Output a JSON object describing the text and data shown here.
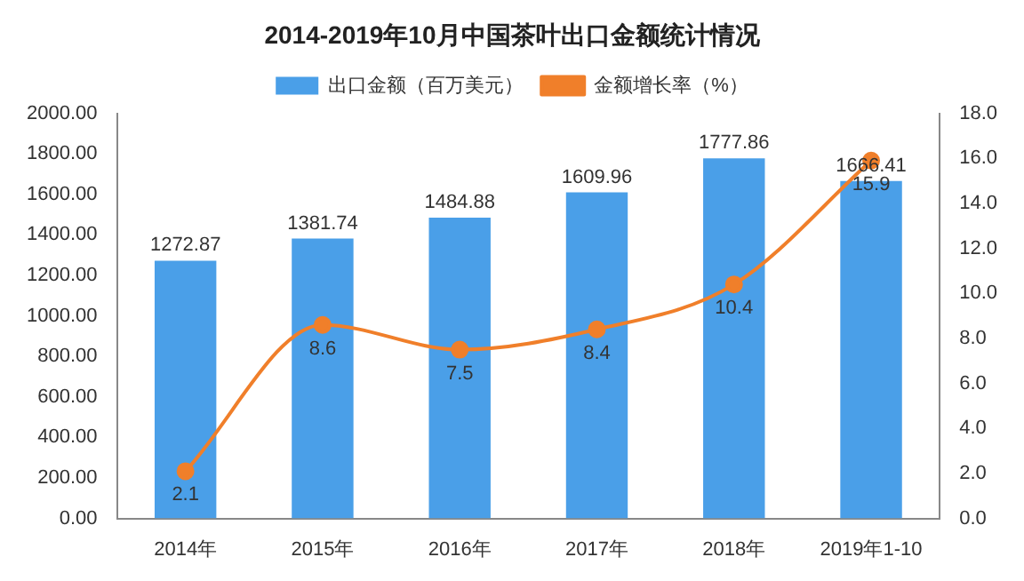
{
  "chart_data": {
    "type": "bar",
    "title": "2014-2019年10月中国茶叶出口金额统计情况",
    "categories": [
      "2014年",
      "2015年",
      "2016年",
      "2017年",
      "2018年",
      "2019年1-10"
    ],
    "series": [
      {
        "name": "出口金额（百万美元）",
        "color": "#4a9fe8",
        "values": [
          1272.87,
          1381.74,
          1484.88,
          1609.96,
          1777.86,
          1666.41
        ]
      },
      {
        "name": "金额增长率（%）",
        "type": "line",
        "axis": "y2",
        "color": "#f07f2a",
        "values": [
          2.1,
          8.6,
          7.5,
          8.4,
          10.4,
          15.9
        ]
      }
    ],
    "ylim": [
      0,
      2000
    ],
    "yticks": [
      {
        "value": 0,
        "label": "0.00"
      },
      {
        "value": 200,
        "label": "200.00"
      },
      {
        "value": 400,
        "label": "400.00"
      },
      {
        "value": 600,
        "label": "600.00"
      },
      {
        "value": 800,
        "label": "800.00"
      },
      {
        "value": 1000,
        "label": "1000.00"
      },
      {
        "value": 1200,
        "label": "1200.00"
      },
      {
        "value": 1400,
        "label": "1400.00"
      },
      {
        "value": 1600,
        "label": "1600.00"
      },
      {
        "value": 1800,
        "label": "1800.00"
      },
      {
        "value": 2000,
        "label": "2000.00"
      }
    ],
    "y2lim": [
      0,
      18
    ],
    "y2ticks": [
      {
        "value": 0,
        "label": "0.0"
      },
      {
        "value": 2,
        "label": "2.0"
      },
      {
        "value": 4,
        "label": "4.0"
      },
      {
        "value": 6,
        "label": "6.0"
      },
      {
        "value": 8,
        "label": "8.0"
      },
      {
        "value": 10,
        "label": "10.0"
      },
      {
        "value": 12,
        "label": "12.0"
      },
      {
        "value": 14,
        "label": "14.0"
      },
      {
        "value": 16,
        "label": "16.0"
      },
      {
        "value": 18,
        "label": "18.0"
      }
    ],
    "legend": "top",
    "marker": "circle",
    "data_labels": true
  }
}
